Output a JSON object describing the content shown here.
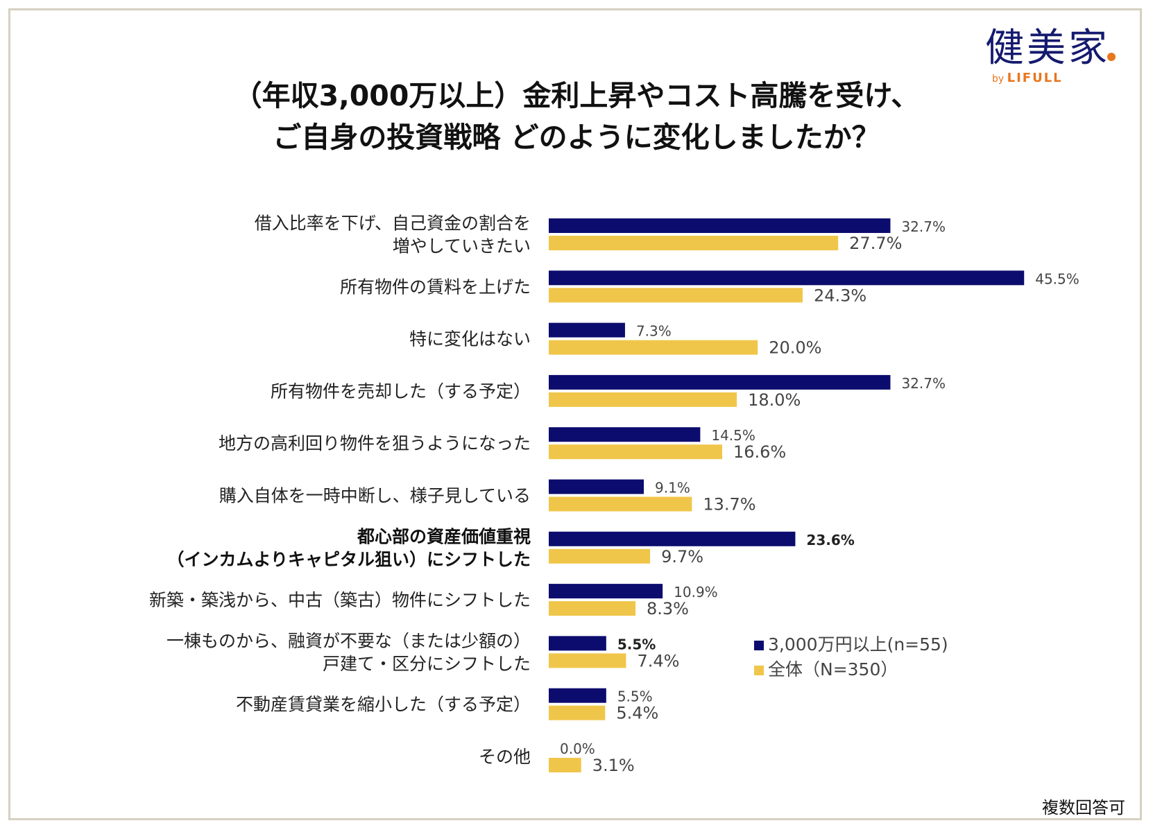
{
  "title_lines": [
    "（年収3,000万以上）金利上昇やコスト高騰を受け、",
    "ご自身の投資戦略 どのように変化しましたか？"
  ],
  "logo": {
    "main": "健美家",
    "by": "by",
    "brand": "LIFULL"
  },
  "note": "複数回答可",
  "colors": {
    "series1": "#0c0c6e",
    "series2": "#f0c64a"
  },
  "chart_data": {
    "type": "bar",
    "orientation": "horizontal",
    "categories": [
      [
        "借入比率を下げ、自己資金の割合を",
        "増やしていきたい"
      ],
      [
        "所有物件の賃料を上げた"
      ],
      [
        "特に変化はない"
      ],
      [
        "所有物件を売却した（する予定）"
      ],
      [
        "地方の高利回り物件を狙うようになった"
      ],
      [
        "購入自体を一時中断し、様子見している"
      ],
      [
        "都心部の資産価値重視",
        "（インカムよりキャピタル狙い）にシフトした"
      ],
      [
        "新築・築浅から、中古（築古）物件にシフトした"
      ],
      [
        "一棟ものから、融資が不要な（または少額の）",
        "戸建て・区分にシフトした"
      ],
      [
        "不動産賃貸業を縮小した（する予定）"
      ],
      [
        "その他"
      ]
    ],
    "highlight_category": 6,
    "series": [
      {
        "name": "3,000万円以上(n=55)",
        "values": [
          32.7,
          45.5,
          7.3,
          32.7,
          14.5,
          9.1,
          23.6,
          10.9,
          5.5,
          5.5,
          0.0
        ],
        "labels": [
          "32.7%",
          "45.5%",
          "7.3%",
          "32.7%",
          "14.5%",
          "9.1%",
          "23.6%",
          "10.9%",
          "5.5%",
          "5.5%",
          "0.0%"
        ],
        "bold_labels": [
          6,
          8
        ]
      },
      {
        "name": "全体（N=350）",
        "values": [
          27.7,
          24.3,
          20.0,
          18.0,
          16.6,
          13.7,
          9.7,
          8.3,
          7.4,
          5.4,
          3.1
        ],
        "labels": [
          "27.7%",
          "24.3%",
          "20.0%",
          "18.0%",
          "16.6%",
          "13.7%",
          "9.7%",
          "8.3%",
          "7.4%",
          "5.4%",
          "3.1%"
        ]
      }
    ],
    "unit": "%",
    "legend_position": "right-bottom",
    "grid": false
  }
}
